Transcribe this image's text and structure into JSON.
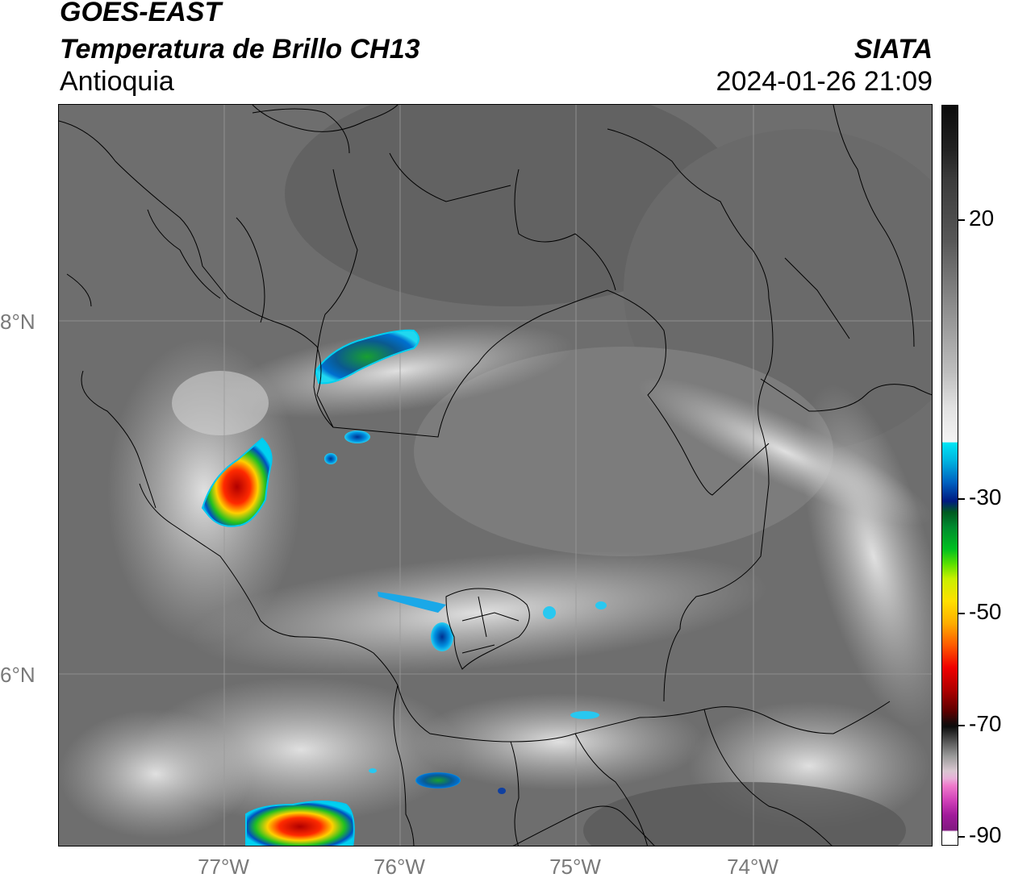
{
  "header": {
    "satellite": "GOES-EAST",
    "product": "Temperatura de Brillo CH13",
    "region": "Antioquia",
    "agency": "SIATA",
    "datetime": "2024-01-26 21:09"
  },
  "axes": {
    "lat_labels": [
      "8°N",
      "6°N"
    ],
    "lon_labels": [
      "77°W",
      "76°W",
      "75°W",
      "74°W"
    ]
  },
  "colorbar": {
    "labels": [
      "20",
      "-30",
      "-50",
      "-70",
      "-90"
    ]
  },
  "colors": {
    "background_gray": "#6c6c6c",
    "border_line": "#000000",
    "grid_line": "#9a9a9a"
  }
}
